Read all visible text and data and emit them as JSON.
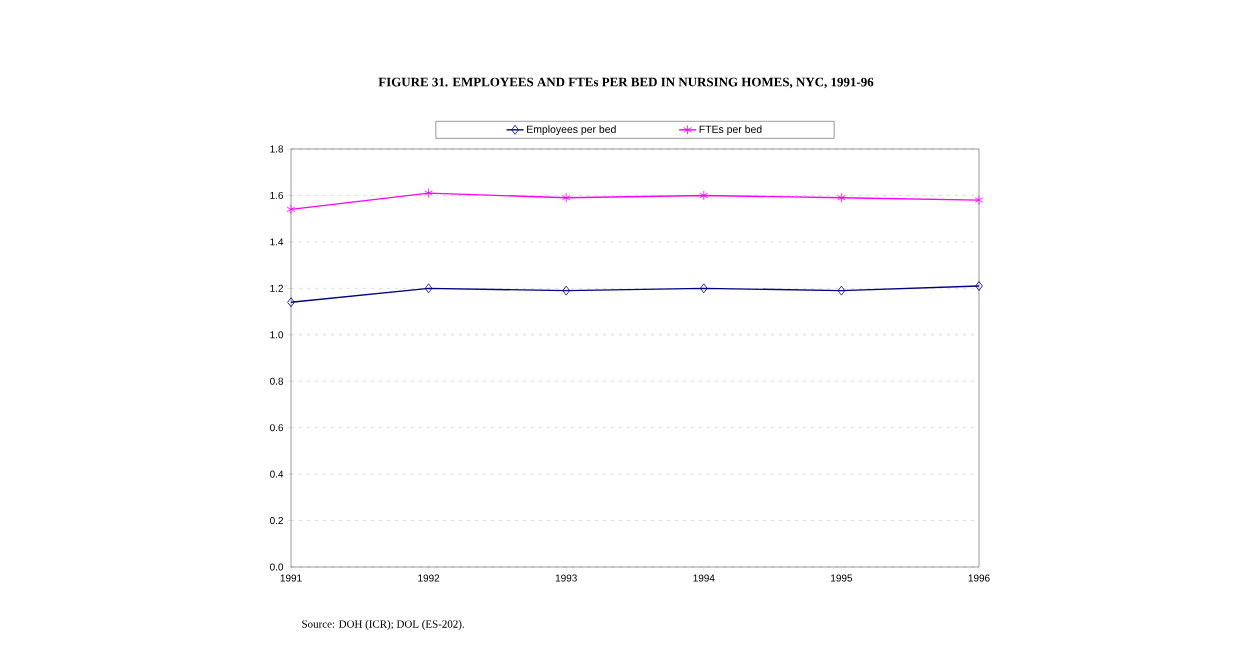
{
  "chart_data": {
    "type": "line",
    "title": "FIGURE 31.  EMPLOYEES AND FTEs PER BED IN NURSING HOMES, NYC, 1991-96",
    "x": [
      1991,
      1992,
      1993,
      1994,
      1995,
      1996
    ],
    "series": [
      {
        "name": "Employees per bed",
        "color": "#000080",
        "marker": "diamond",
        "values": [
          1.14,
          1.2,
          1.19,
          1.2,
          1.19,
          1.21
        ]
      },
      {
        "name": "FTEs per bed",
        "color": "#ff00ff",
        "marker": "cross",
        "values": [
          1.54,
          1.61,
          1.59,
          1.6,
          1.59,
          1.58
        ]
      }
    ],
    "xlim": [
      1991,
      1996
    ],
    "xticks": [
      1991,
      1992,
      1993,
      1994,
      1995,
      1996
    ],
    "ylim": [
      0.0,
      1.8
    ],
    "yticks": [
      {
        "value": 0,
        "label": "0.0"
      },
      {
        "value": 0.2,
        "label": "0.2"
      },
      {
        "value": 0.4,
        "label": "0.4"
      },
      {
        "value": 0.6,
        "label": "0.6"
      },
      {
        "value": 0.8,
        "label": "0.8"
      },
      {
        "value": 1.0,
        "label": "1.0"
      },
      {
        "value": 1.2,
        "label": "1.2"
      },
      {
        "value": 1.4,
        "label": "1.4"
      },
      {
        "value": 1.6,
        "label": "1.6"
      },
      {
        "value": 1.8,
        "label": "1.8"
      }
    ],
    "grid": "y",
    "legend": "top",
    "line_style": "solid",
    "annotations": [
      "Source:  DOH (ICR); DOL (ES-202)."
    ]
  }
}
